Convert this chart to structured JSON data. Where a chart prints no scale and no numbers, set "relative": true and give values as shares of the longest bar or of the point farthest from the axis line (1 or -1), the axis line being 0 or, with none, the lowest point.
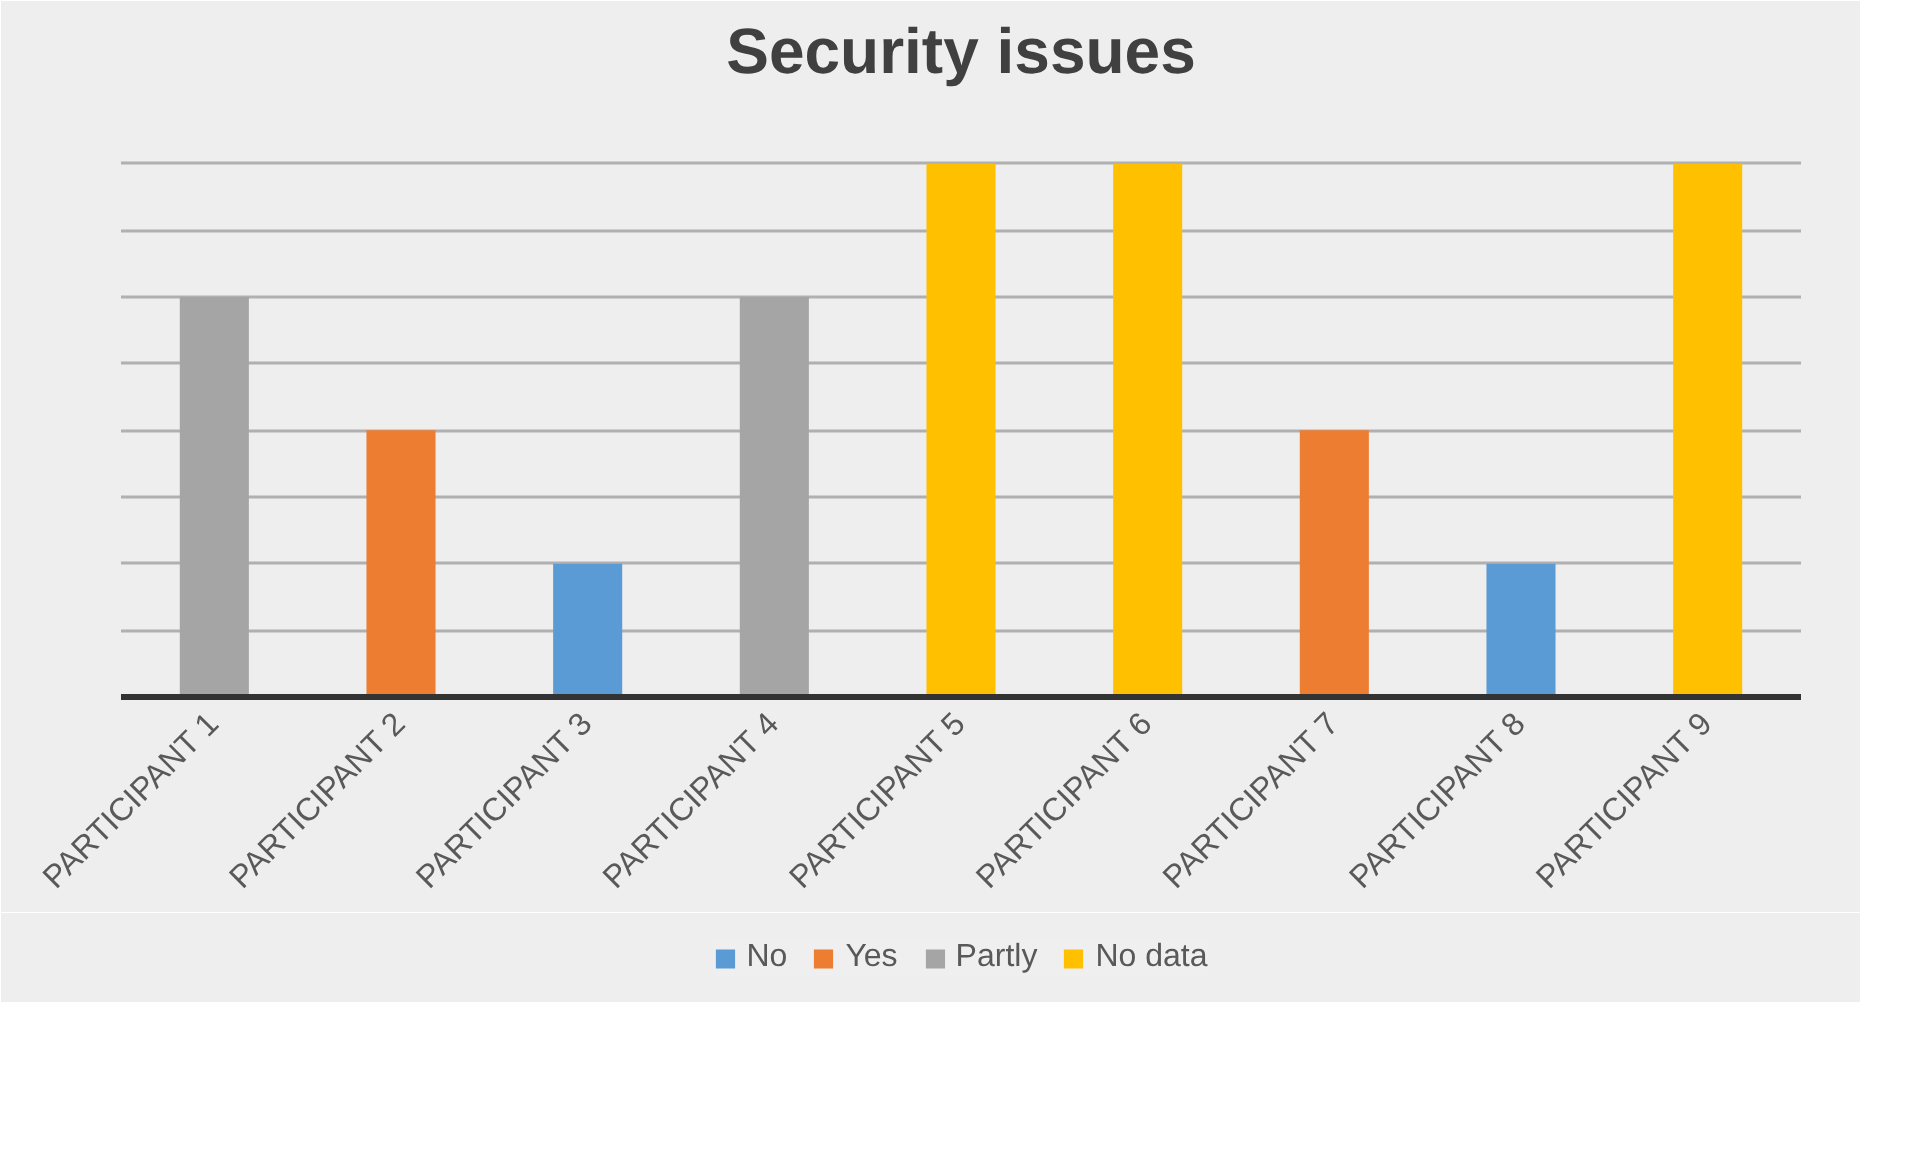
{
  "chart_data": {
    "type": "bar",
    "title": "Security issues",
    "relative": true,
    "grid": "y",
    "legend": "bottom",
    "categories": [
      "PARTICIPANT 1",
      "PARTICIPANT 2",
      "PARTICIPANT 3",
      "PARTICIPANT 4",
      "PARTICIPANT 5",
      "PARTICIPANT 6",
      "PARTICIPANT 7",
      "PARTICIPANT 8",
      "PARTICIPANT 9"
    ],
    "series": [
      {
        "name": "No",
        "color": "#5b9bd5",
        "values": [
          null,
          null,
          0.25,
          null,
          null,
          null,
          null,
          0.25,
          null
        ]
      },
      {
        "name": "Yes",
        "color": "#ed7d31",
        "values": [
          null,
          0.5,
          null,
          null,
          null,
          null,
          0.5,
          null,
          null
        ]
      },
      {
        "name": "Partly",
        "color": "#a5a5a5",
        "values": [
          0.75,
          null,
          null,
          0.75,
          null,
          null,
          null,
          null,
          null
        ]
      },
      {
        "name": "No data",
        "color": "#ffc000",
        "values": [
          null,
          null,
          null,
          null,
          1,
          1,
          null,
          null,
          1
        ]
      }
    ]
  }
}
